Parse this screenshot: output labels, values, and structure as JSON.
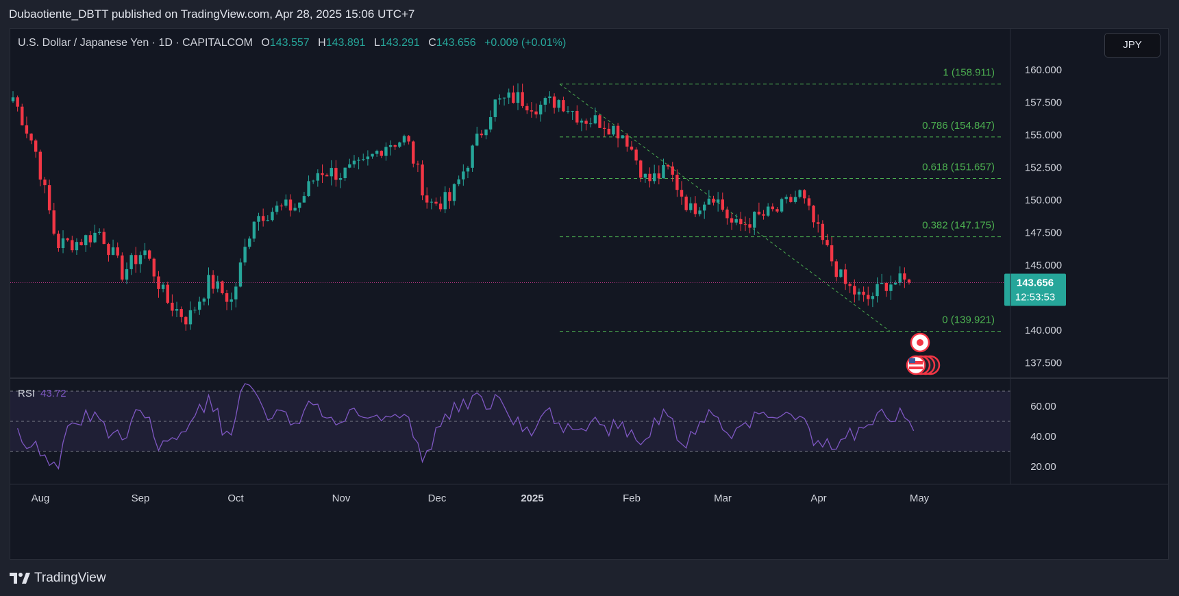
{
  "header": {
    "published": "Dubaotiente_DBTT published on TradingView.com, Apr 28, 2025 15:06 UTC+7"
  },
  "legend": {
    "symbol": "U.S. Dollar / Japanese Yen · 1D · CAPITALCOM",
    "o_label": "O",
    "o_value": "143.557",
    "h_label": "H",
    "h_value": "143.891",
    "l_label": "L",
    "l_value": "143.291",
    "c_label": "C",
    "c_value": "143.656",
    "change": "+0.009 (+0.01%)"
  },
  "currency_button": "JPY",
  "colors": {
    "up": "#26a69a",
    "down": "#f23645",
    "fib": "#4caf50",
    "rsi": "#7e57c2",
    "price_tag": "#26a69a"
  },
  "price_axis": {
    "ticks": [
      "160.000",
      "157.500",
      "155.000",
      "152.500",
      "150.000",
      "147.500",
      "145.000",
      "140.000",
      "137.500"
    ]
  },
  "last_price": {
    "value": "143.656",
    "countdown": "12:53:53"
  },
  "fib_levels": [
    {
      "label": "1 (158.911)",
      "price": 158.911
    },
    {
      "label": "0.786 (154.847)",
      "price": 154.847
    },
    {
      "label": "0.618 (151.657)",
      "price": 151.657
    },
    {
      "label": "0.382 (147.175)",
      "price": 147.175
    },
    {
      "label": "0 (139.921)",
      "price": 139.921
    }
  ],
  "time_axis": {
    "labels": [
      "Aug",
      "Sep",
      "Oct",
      "Nov",
      "Dec",
      "2025",
      "Feb",
      "Mar",
      "Apr",
      "May"
    ]
  },
  "rsi": {
    "label": "RSI",
    "value": "43.72",
    "ticks": [
      "60.00",
      "40.00",
      "20.00"
    ]
  },
  "event_icons": [
    "japan-flag-icon",
    "us-flag-icon"
  ],
  "brand": "TradingView",
  "chart_data": {
    "type": "candlestick",
    "title": "U.S. Dollar / Japanese Yen · 1D · CAPITALCOM",
    "ylim": [
      136.5,
      162.5
    ],
    "x": [
      "2024-07-15",
      "2024-07-22",
      "2024-07-29",
      "2024-08-05",
      "2024-08-12",
      "2024-08-19",
      "2024-08-26",
      "2024-09-02",
      "2024-09-09",
      "2024-09-16",
      "2024-09-23",
      "2024-09-30",
      "2024-10-07",
      "2024-10-14",
      "2024-10-21",
      "2024-10-28",
      "2024-11-04",
      "2024-11-11",
      "2024-11-18",
      "2024-11-25",
      "2024-12-02",
      "2024-12-09",
      "2024-12-16",
      "2024-12-23",
      "2024-12-30",
      "2025-01-06",
      "2025-01-13",
      "2025-01-20",
      "2025-01-27",
      "2025-02-03",
      "2025-02-10",
      "2025-02-17",
      "2025-02-24",
      "2025-03-03",
      "2025-03-10",
      "2025-03-17",
      "2025-03-24",
      "2025-03-31",
      "2025-04-07",
      "2025-04-14",
      "2025-04-21",
      "2025-04-28"
    ],
    "series": [
      {
        "name": "USDJPY",
        "values": [
          157.9,
          154.0,
          146.6,
          146.8,
          147.6,
          144.4,
          146.2,
          142.3,
          140.8,
          143.8,
          142.2,
          148.7,
          149.3,
          149.5,
          152.3,
          152.0,
          152.6,
          154.3,
          154.7,
          149.7,
          150.0,
          153.7,
          157.4,
          157.9,
          157.2,
          157.7,
          156.3,
          156.0,
          155.0,
          151.4,
          152.3,
          149.2,
          150.6,
          147.9,
          148.6,
          149.2,
          150.5,
          146.9,
          143.6,
          142.2,
          143.7,
          143.656
        ]
      }
    ],
    "fibonacci": [
      158.911,
      154.847,
      151.657,
      147.175,
      139.921
    ],
    "rsi": {
      "levels": [
        70,
        50,
        30
      ],
      "last": 43.72
    }
  }
}
